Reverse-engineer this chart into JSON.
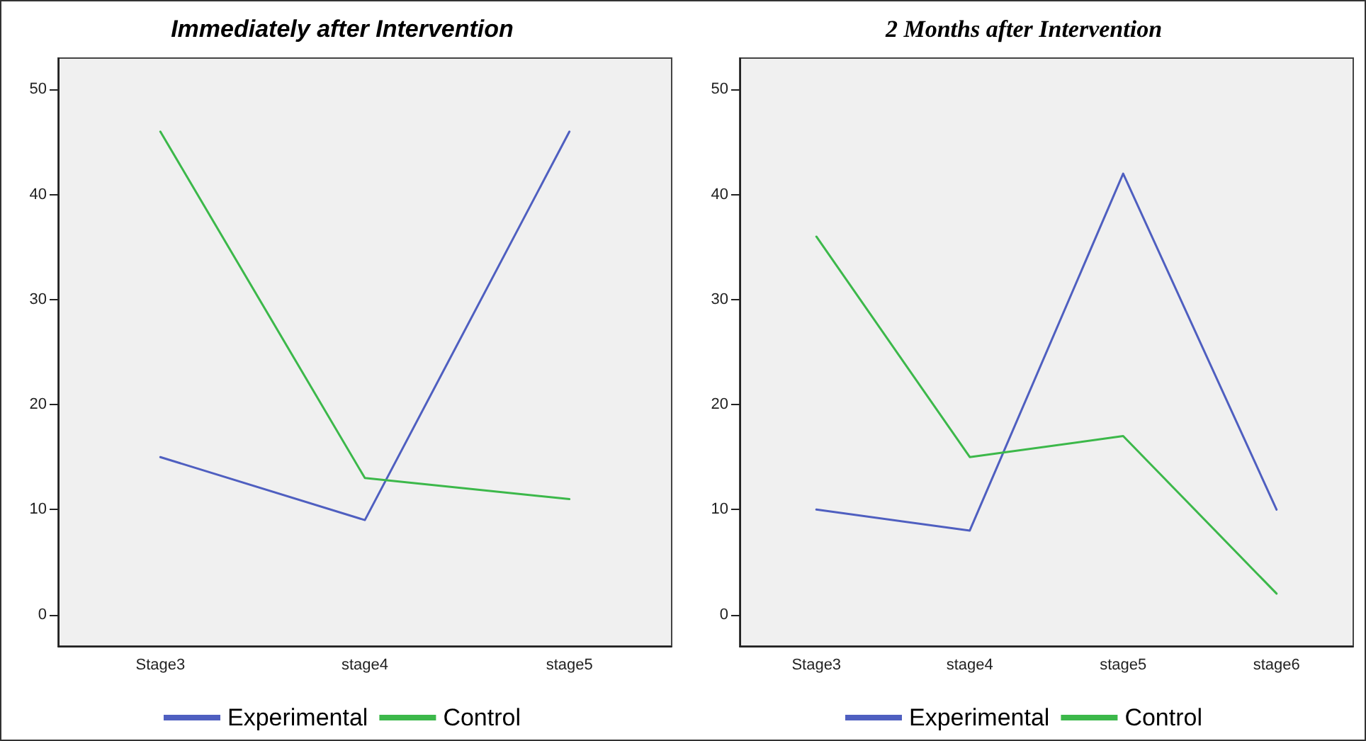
{
  "chart_data": [
    {
      "type": "line",
      "title": "Immediately after Intervention",
      "categories": [
        "Stage3",
        "stage4",
        "stage5"
      ],
      "series": [
        {
          "name": "Experimental",
          "color": "#4f5fc0",
          "values": [
            15,
            9,
            46
          ]
        },
        {
          "name": "Control",
          "color": "#3cb84a",
          "values": [
            46,
            13,
            11
          ]
        }
      ],
      "ylim": [
        -3,
        53
      ],
      "yticks": [
        0,
        10,
        20,
        30,
        40,
        50
      ],
      "grid": false,
      "legend": "bottom",
      "marker": "none",
      "line_style": "solid"
    },
    {
      "type": "line",
      "title": "2 Months after Intervention",
      "categories": [
        "Stage3",
        "stage4",
        "stage5",
        "stage6"
      ],
      "series": [
        {
          "name": "Experimental",
          "color": "#4f5fc0",
          "values": [
            10,
            8,
            42,
            10
          ]
        },
        {
          "name": "Control",
          "color": "#3cb84a",
          "values": [
            36,
            15,
            17,
            2
          ]
        }
      ],
      "ylim": [
        -3,
        53
      ],
      "yticks": [
        0,
        10,
        20,
        30,
        40,
        50
      ],
      "grid": false,
      "legend": "bottom",
      "marker": "none",
      "line_style": "solid"
    }
  ]
}
